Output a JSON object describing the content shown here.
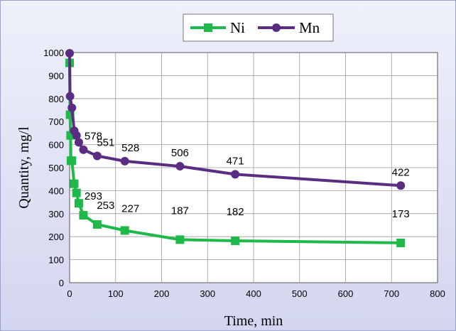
{
  "chart_data": {
    "type": "line",
    "xlabel": "Time, min",
    "ylabel": "Quantity, mg/l",
    "xlim": [
      0,
      800
    ],
    "ylim": [
      0,
      1000
    ],
    "xticks": [
      0,
      100,
      200,
      300,
      400,
      500,
      600,
      700,
      800
    ],
    "yticks": [
      0,
      100,
      200,
      300,
      400,
      500,
      600,
      700,
      800,
      900,
      1000
    ],
    "grid": true,
    "legend_position": "top",
    "series": [
      {
        "name": "Ni",
        "color": "#1fb84a",
        "marker": "square",
        "x": [
          0,
          1,
          2,
          3,
          5,
          10,
          15,
          20,
          30,
          60,
          120,
          240,
          360,
          720
        ],
        "y": [
          955,
          730,
          640,
          530,
          530,
          430,
          390,
          345,
          293,
          253,
          227,
          187,
          182,
          173
        ],
        "labels": [
          {
            "x": 30,
            "text": "293"
          },
          {
            "x": 60,
            "text": "253"
          },
          {
            "x": 120,
            "text": "227"
          },
          {
            "x": 240,
            "text": "187"
          },
          {
            "x": 360,
            "text": "182"
          },
          {
            "x": 720,
            "text": "173"
          }
        ]
      },
      {
        "name": "Mn",
        "color": "#5a2d82",
        "marker": "circle",
        "x": [
          0,
          1,
          5,
          10,
          15,
          20,
          30,
          60,
          120,
          240,
          360,
          720
        ],
        "y": [
          997,
          810,
          760,
          660,
          640,
          610,
          578,
          551,
          528,
          506,
          471,
          422
        ],
        "labels": [
          {
            "x": 30,
            "text": "578"
          },
          {
            "x": 60,
            "text": "551"
          },
          {
            "x": 120,
            "text": "528"
          },
          {
            "x": 240,
            "text": "506"
          },
          {
            "x": 360,
            "text": "471"
          },
          {
            "x": 720,
            "text": "422"
          }
        ]
      }
    ]
  }
}
